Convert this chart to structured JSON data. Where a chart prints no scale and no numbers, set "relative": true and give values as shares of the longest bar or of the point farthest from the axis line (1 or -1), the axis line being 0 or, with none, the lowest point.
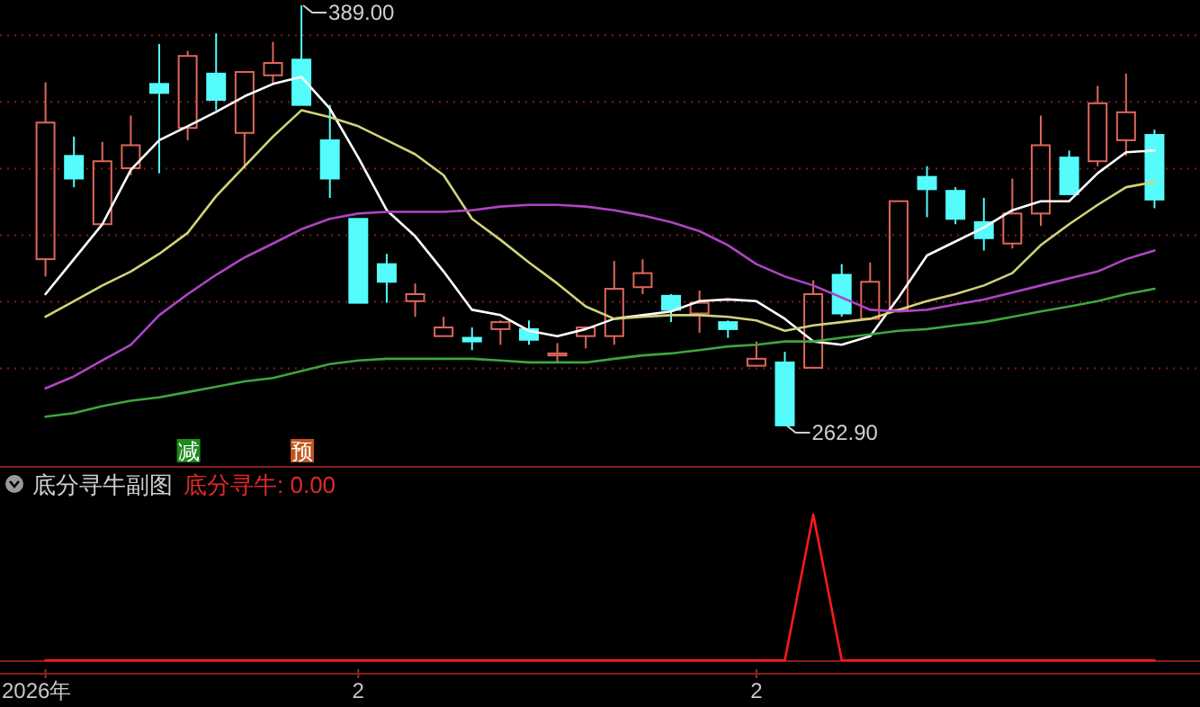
{
  "chart_data": [
    {
      "type": "candlestick",
      "categories": [
        null,
        null,
        null,
        null,
        null,
        null,
        null,
        null,
        null,
        null,
        null,
        null,
        null,
        null,
        null,
        null,
        null,
        null,
        null,
        null,
        null,
        null,
        null,
        null,
        null,
        null,
        null,
        null,
        null,
        null,
        null,
        null,
        null,
        null,
        null,
        null,
        null,
        null,
        null,
        null
      ],
      "ohlc": [
        [
          312.8,
          365.9,
          307.6,
          353.8
        ],
        [
          343.8,
          349.6,
          334.4,
          337.0
        ],
        [
          323.3,
          348.0,
          323.3,
          342.2
        ],
        [
          340.1,
          355.9,
          338.0,
          347.0
        ],
        [
          365.4,
          377.4,
          338.6,
          362.7
        ],
        [
          352.2,
          375.3,
          348.5,
          373.8
        ],
        [
          368.5,
          380.6,
          357.5,
          360.6
        ],
        [
          350.7,
          369.0,
          340.1,
          369.0
        ],
        [
          368.0,
          378.0,
          365.4,
          371.7
        ],
        [
          372.7,
          389.0,
          359.1,
          359.1
        ],
        [
          348.5,
          359.1,
          331.2,
          337.0
        ],
        [
          324.9,
          324.9,
          299.7,
          299.7
        ],
        [
          311.3,
          314.4,
          299.7,
          306.0
        ],
        [
          300.2,
          305.5,
          295.5,
          302.3
        ],
        [
          289.7,
          295.5,
          289.7,
          292.3
        ],
        [
          289.2,
          292.3,
          285.5,
          288.1
        ],
        [
          291.8,
          294.4,
          287.1,
          293.9
        ],
        [
          291.8,
          294.4,
          287.1,
          288.6
        ],
        [
          283.9,
          287.6,
          281.8,
          284.5
        ],
        [
          289.7,
          292.3,
          286.0,
          292.3
        ],
        [
          289.7,
          312.3,
          287.1,
          303.9
        ],
        [
          304.4,
          312.8,
          302.3,
          308.6
        ],
        [
          301.8,
          302.3,
          293.9,
          297.6
        ],
        [
          296.5,
          303.4,
          290.7,
          299.7
        ],
        [
          293.9,
          294.4,
          289.2,
          291.8
        ],
        [
          280.8,
          288.1,
          280.8,
          282.9
        ],
        [
          281.8,
          285.0,
          262.9,
          262.9
        ],
        [
          280.2,
          306.5,
          280.2,
          302.3
        ],
        [
          308.1,
          311.3,
          295.5,
          296.5
        ],
        [
          294.9,
          311.8,
          294.9,
          306.0
        ],
        [
          297.6,
          330.2,
          297.6,
          330.2
        ],
        [
          337.5,
          340.7,
          325.4,
          333.8
        ],
        [
          333.3,
          334.4,
          323.3,
          324.9
        ],
        [
          323.9,
          331.2,
          315.4,
          319.1
        ],
        [
          317.5,
          337.0,
          316.0,
          326.5
        ],
        [
          326.5,
          355.9,
          322.8,
          347.0
        ],
        [
          343.3,
          345.4,
          332.3,
          332.3
        ],
        [
          342.2,
          364.8,
          340.7,
          359.6
        ],
        [
          348.5,
          368.5,
          343.8,
          356.9
        ],
        [
          350.1,
          351.7,
          328.1,
          330.7
        ]
      ],
      "colors": [
        "#e0665a",
        "#54fcfc",
        "#e0665a",
        "#e0665a",
        "#54fcfc",
        "#e0665a",
        "#54fcfc",
        "#e0665a",
        "#e0665a",
        "#54fcfc",
        "#54fcfc",
        "#54fcfc",
        "#54fcfc",
        "#e0665a",
        "#e0665a",
        "#54fcfc",
        "#e0665a",
        "#54fcfc",
        "#e0665a",
        "#e0665a",
        "#e0665a",
        "#e0665a",
        "#54fcfc",
        "#e0665a",
        "#54fcfc",
        "#e0665a",
        "#54fcfc",
        "#e0665a",
        "#54fcfc",
        "#e0665a",
        "#e0665a",
        "#54fcfc",
        "#54fcfc",
        "#54fcfc",
        "#e0665a",
        "#e0665a",
        "#54fcfc",
        "#e0665a",
        "#e0665a",
        "#54fcfc"
      ],
      "series": [
        {
          "type": "line",
          "color": "#ffffff",
          "values": [
            302.3,
            312.8,
            323.3,
            339.6,
            348.5,
            352.7,
            357.0,
            361.7,
            365.4,
            367.5,
            358.0,
            343.3,
            327.5,
            319.7,
            309.1,
            297.6,
            296.0,
            291.3,
            289.7,
            291.8,
            294.9,
            296.0,
            297.1,
            300.2,
            300.7,
            300.2,
            294.9,
            288.1,
            287.1,
            289.7,
            301.3,
            313.9,
            318.1,
            322.3,
            327.5,
            330.2,
            330.2,
            338.6,
            344.9,
            345.4
          ]
        },
        {
          "type": "line",
          "color": "#d2d27a",
          "values": [
            295.5,
            300.2,
            304.9,
            309.1,
            314.4,
            320.7,
            331.7,
            340.7,
            349.6,
            357.5,
            355.4,
            352.7,
            348.5,
            344.3,
            338.0,
            324.9,
            318.6,
            311.8,
            305.5,
            298.6,
            294.9,
            295.5,
            296.0,
            296.0,
            295.5,
            294.4,
            291.3,
            292.9,
            293.9,
            294.9,
            297.6,
            300.2,
            302.3,
            304.9,
            308.6,
            317.0,
            323.3,
            329.1,
            334.4,
            336.0
          ]
        },
        {
          "type": "line",
          "color": "#b044c4",
          "values": [
            274.0,
            277.6,
            282.4,
            287.1,
            296.0,
            302.3,
            308.1,
            313.3,
            317.5,
            321.8,
            324.9,
            326.5,
            327.0,
            327.0,
            327.0,
            327.5,
            328.6,
            329.1,
            329.1,
            328.6,
            327.5,
            325.9,
            323.9,
            321.2,
            317.0,
            311.3,
            307.6,
            304.9,
            301.3,
            297.6,
            297.1,
            297.6,
            299.2,
            300.7,
            302.8,
            304.9,
            307.0,
            309.1,
            312.8,
            315.4
          ]
        },
        {
          "type": "line",
          "color": "#3fa53f",
          "values": [
            265.5,
            266.6,
            268.7,
            270.3,
            271.3,
            272.9,
            274.5,
            276.1,
            277.1,
            279.2,
            281.3,
            282.4,
            282.9,
            282.9,
            282.9,
            282.9,
            282.4,
            281.8,
            281.8,
            281.8,
            282.9,
            283.9,
            284.5,
            285.5,
            286.6,
            287.1,
            288.1,
            288.1,
            289.2,
            290.2,
            291.3,
            291.8,
            292.9,
            293.9,
            295.5,
            297.1,
            298.6,
            300.2,
            302.3,
            303.9
          ]
        }
      ],
      "yticks": [
        {
          "value": 380,
          "label": null
        },
        {
          "value": 360,
          "label": null
        },
        {
          "value": 340,
          "label": null
        },
        {
          "value": 320,
          "label": null
        },
        {
          "value": 300,
          "label": null
        },
        {
          "value": 280,
          "label": null
        }
      ],
      "grid": "y",
      "annotations": [
        "389.00",
        "262.90",
        "减",
        "预"
      ]
    },
    {
      "type": "line",
      "title": "底分寻牛副图",
      "categories": [
        "2026年",
        null,
        null,
        null,
        null,
        null,
        null,
        null,
        null,
        null,
        null,
        "2",
        null,
        null,
        null,
        null,
        null,
        null,
        null,
        null,
        null,
        null,
        null,
        null,
        null,
        "2",
        null,
        null,
        null,
        null,
        null,
        null,
        null,
        null,
        null,
        null,
        null,
        null,
        null,
        null
      ],
      "series": [
        {
          "color": "#ff1a1a",
          "values": [
            0,
            0,
            0,
            0,
            0,
            0,
            0,
            0,
            0,
            0,
            0,
            0,
            0,
            0,
            0,
            0,
            0,
            0,
            0,
            0,
            0,
            0,
            0,
            0,
            0,
            0,
            0,
            1,
            0,
            0,
            0,
            0,
            0,
            0,
            0,
            0,
            0,
            0,
            0,
            0
          ]
        }
      ],
      "relative": true,
      "annotations": [
        "底分寻牛: 0.00"
      ]
    }
  ]
}
